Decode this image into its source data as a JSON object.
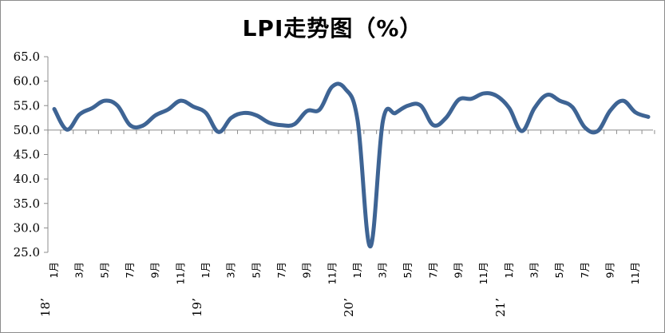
{
  "chart_data": {
    "type": "line",
    "title": "LPI走势图（%）",
    "xlabel": "",
    "ylabel": "",
    "ylim": [
      25,
      65
    ],
    "y_ticks": [
      "65.0",
      "60.0",
      "55.0",
      "50.0",
      "45.0",
      "40.0",
      "35.0",
      "30.0",
      "25.0"
    ],
    "x_axis_at": 50,
    "grid": false,
    "legend": "none",
    "line_color": "#3e6494",
    "x_month_labels": [
      "1月",
      "3月",
      "5月",
      "7月",
      "9月",
      "11月",
      "1月",
      "3月",
      "5月",
      "7月",
      "9月",
      "11月",
      "1月",
      "3月",
      "5月",
      "7月",
      "9月",
      "11月",
      "1月",
      "3月",
      "5月",
      "7月",
      "9月",
      "11月"
    ],
    "x_year_labels": [
      {
        "text": "18’",
        "month_index": 0
      },
      {
        "text": "19’",
        "month_index": 12
      },
      {
        "text": "20’",
        "month_index": 24
      },
      {
        "text": "21’",
        "month_index": 36
      }
    ],
    "series": [
      {
        "values": [
          54.3,
          50.1,
          53.2,
          54.5,
          56.0,
          55.0,
          51.0,
          50.9,
          53.0,
          54.2,
          56.0,
          54.8,
          53.5,
          49.6,
          52.5,
          53.5,
          53.0,
          51.5,
          51.0,
          51.2,
          53.9,
          54.2,
          58.9,
          58.5,
          52.0,
          26.2,
          51.8,
          53.5,
          55.0,
          55.0,
          51.0,
          52.5,
          56.2,
          56.4,
          57.5,
          57.0,
          54.5,
          49.8,
          54.5,
          57.2,
          56.0,
          54.7,
          50.5,
          49.8,
          54.0,
          56.0,
          53.6,
          52.7
        ]
      }
    ]
  }
}
